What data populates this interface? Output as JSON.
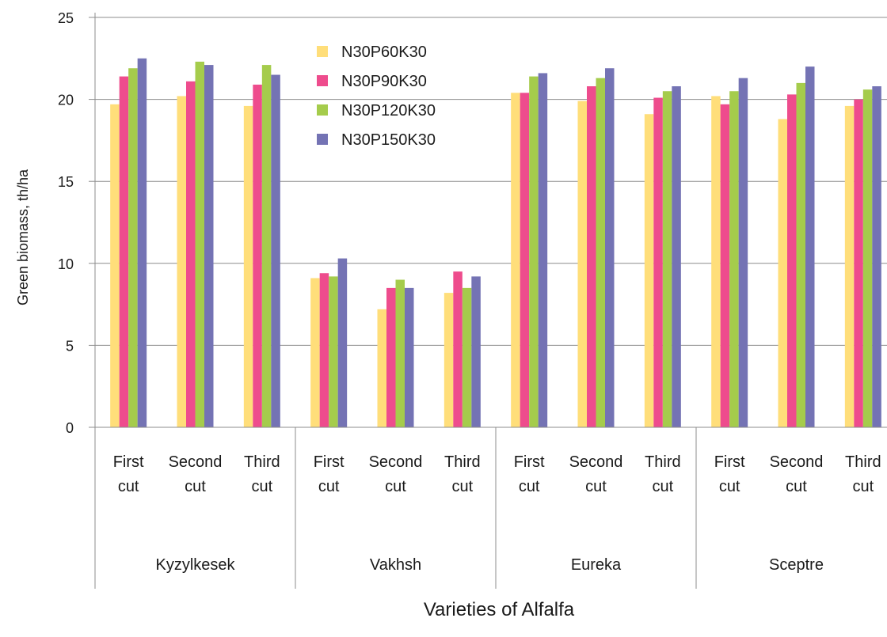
{
  "chart_data": {
    "type": "bar",
    "title": "",
    "xlabel": "Varieties of Alfalfa",
    "ylabel": "Green biomass, th/ha",
    "ylim": [
      0,
      25
    ],
    "yticks": [
      0,
      5,
      10,
      15,
      20,
      25
    ],
    "grid": true,
    "legend_position": "top-center",
    "groups": [
      {
        "name": "Kyzylkesek",
        "cuts": [
          [
            "First",
            "cut"
          ],
          [
            "Second",
            "cut"
          ],
          [
            "Third",
            "cut"
          ]
        ]
      },
      {
        "name": "Vakhsh",
        "cuts": [
          [
            "First",
            "cut"
          ],
          [
            "Second",
            "cut"
          ],
          [
            "Third",
            "cut"
          ]
        ]
      },
      {
        "name": "Eureka",
        "cuts": [
          [
            "First",
            "cut"
          ],
          [
            "Second",
            "cut"
          ],
          [
            "Third",
            "cut"
          ]
        ]
      },
      {
        "name": "Sceptre",
        "cuts": [
          [
            "First",
            "cut"
          ],
          [
            "Second",
            "cut"
          ],
          [
            "Third",
            "cut"
          ]
        ]
      }
    ],
    "categories": [
      "Kyzylkesek First cut",
      "Kyzylkesek Second cut",
      "Kyzylkesek Third cut",
      "Vakhsh First cut",
      "Vakhsh Second cut",
      "Vakhsh Third cut",
      "Eureka First cut",
      "Eureka Second cut",
      "Eureka Third cut",
      "Sceptre First cut",
      "Sceptre Second cut",
      "Sceptre Third cut"
    ],
    "series": [
      {
        "name": "N30P60K30",
        "color": "#FFDE7A",
        "values": [
          19.7,
          20.2,
          19.6,
          9.1,
          7.2,
          8.2,
          20.4,
          19.9,
          19.1,
          20.2,
          18.8,
          19.6
        ]
      },
      {
        "name": "N30P90K30",
        "color": "#EE4C8D",
        "values": [
          21.4,
          21.1,
          20.9,
          9.4,
          8.5,
          9.5,
          20.4,
          20.8,
          20.1,
          19.7,
          20.3,
          20.0
        ]
      },
      {
        "name": "N30P120K30",
        "color": "#A5CC4C",
        "values": [
          21.9,
          22.3,
          22.1,
          9.2,
          9.0,
          8.5,
          21.4,
          21.3,
          20.5,
          20.5,
          21.0,
          20.6
        ]
      },
      {
        "name": "N30P150K30",
        "color": "#7473B4",
        "values": [
          22.5,
          22.1,
          21.5,
          10.3,
          8.5,
          9.2,
          21.6,
          21.9,
          20.8,
          21.3,
          22.0,
          20.8
        ]
      }
    ]
  }
}
